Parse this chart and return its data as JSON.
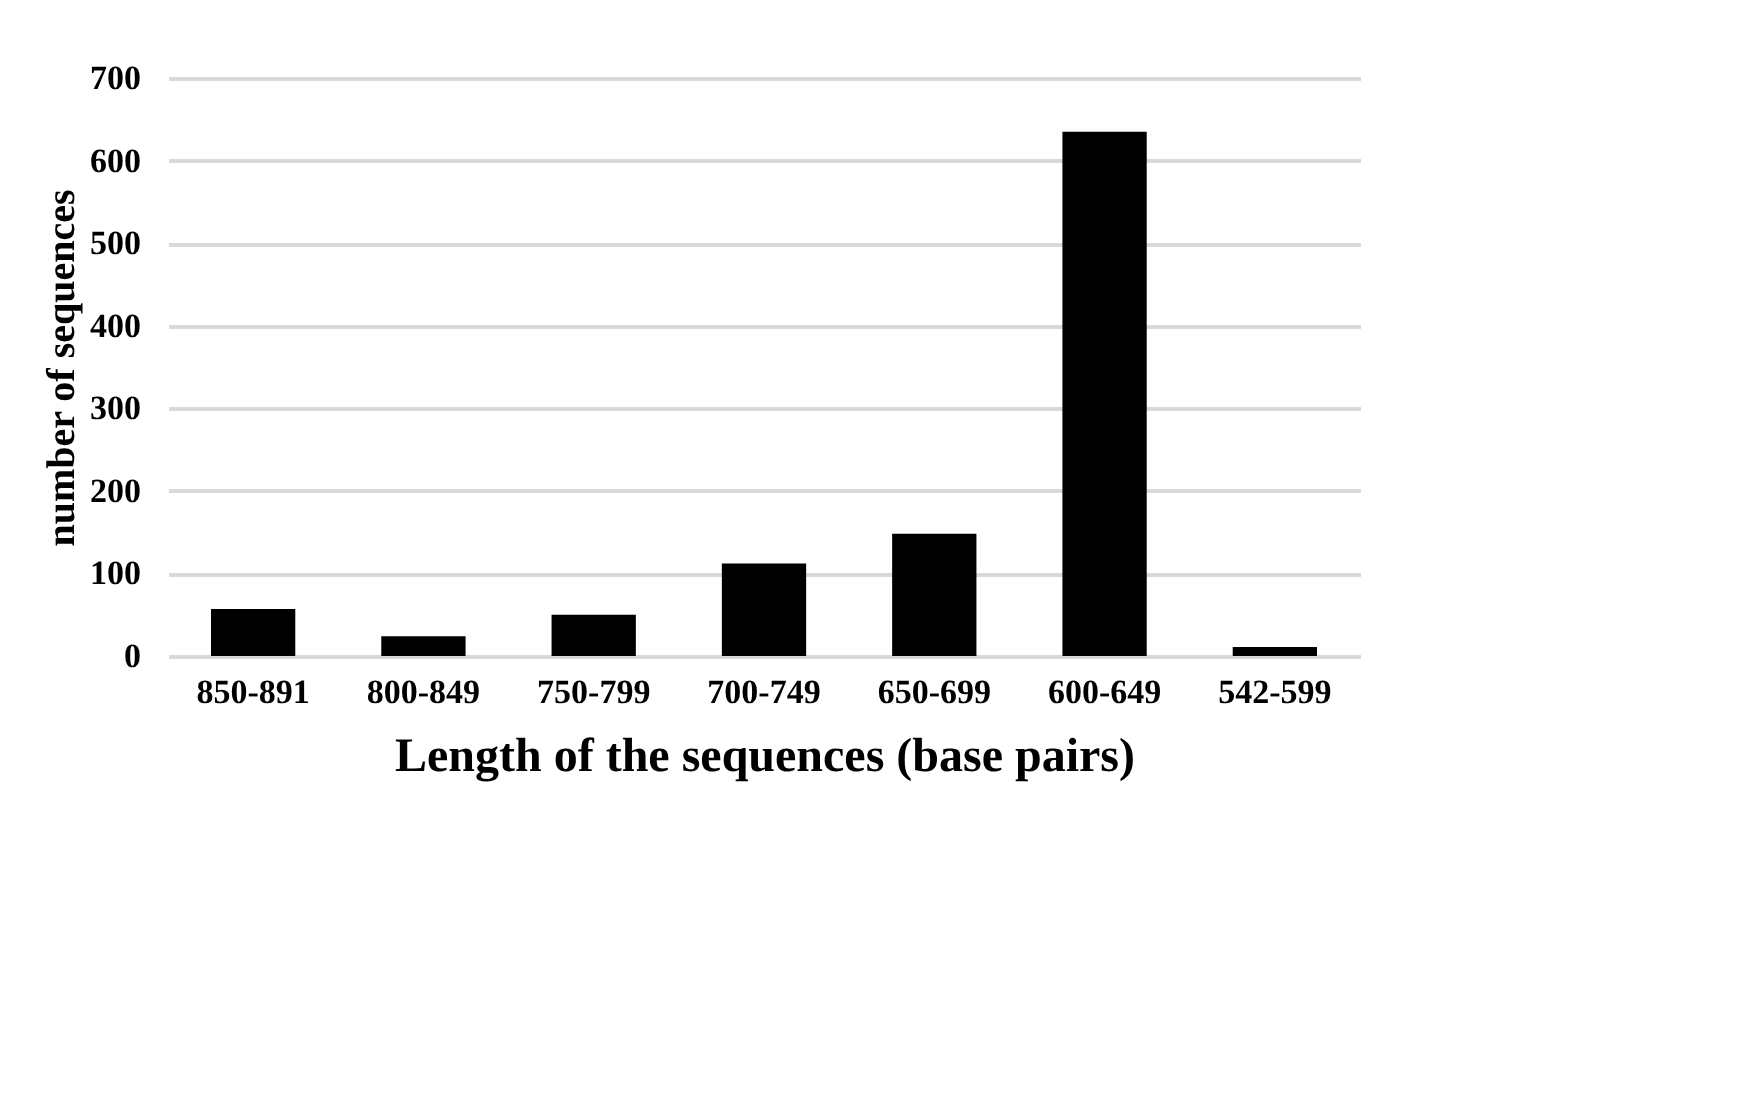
{
  "chart_data": {
    "type": "bar",
    "xlabel": "Length of the sequences (base pairs)",
    "ylabel": "number of sequences",
    "categories": [
      "850-891",
      "800-849",
      "750-799",
      "700-749",
      "650-699",
      "600-649",
      "542-599"
    ],
    "values": [
      57,
      24,
      50,
      112,
      148,
      635,
      11
    ],
    "color": "#000000",
    "ylim": [
      0,
      700
    ],
    "yticks": [
      0,
      100,
      200,
      300,
      400,
      500,
      600,
      700
    ],
    "grid": "y"
  }
}
